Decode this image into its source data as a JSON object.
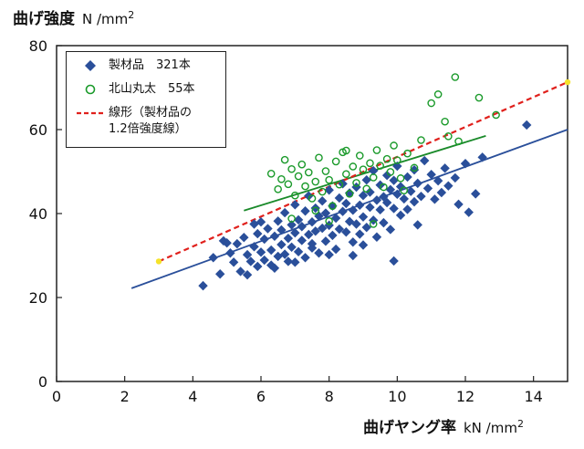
{
  "chart_data": {
    "type": "scatter",
    "ylabel": "曲げ強度",
    "ylabel_unit": "N /mm2",
    "xlabel": "曲げヤング率",
    "xlabel_unit": "kN /mm2",
    "xlim": [
      0,
      15
    ],
    "ylim": [
      0,
      80
    ],
    "x_ticks": [
      "0",
      "2",
      "4",
      "6",
      "8",
      "10",
      "12",
      "14"
    ],
    "y_ticks": [
      "0",
      "20",
      "40",
      "60",
      "80"
    ],
    "grid": false,
    "legend_position": "top-left",
    "series": [
      {
        "name": "製材品",
        "count_label": "321本",
        "marker": "diamond",
        "color": "#2a4f9a",
        "points": [
          [
            4.3,
            22.8
          ],
          [
            4.6,
            29.5
          ],
          [
            4.8,
            25.6
          ],
          [
            4.9,
            33.5
          ],
          [
            5.1,
            30.6
          ],
          [
            5.2,
            28.4
          ],
          [
            5.3,
            32.8
          ],
          [
            5.4,
            26.2
          ],
          [
            5.5,
            34.3
          ],
          [
            5.6,
            25.4
          ],
          [
            5.6,
            30.2
          ],
          [
            5.7,
            28.6
          ],
          [
            5.8,
            32.1
          ],
          [
            5.9,
            35.2
          ],
          [
            5.9,
            27.4
          ],
          [
            6.0,
            30.8
          ],
          [
            6.1,
            33.9
          ],
          [
            6.1,
            28.9
          ],
          [
            6.2,
            36.4
          ],
          [
            6.3,
            31.3
          ],
          [
            6.3,
            27.7
          ],
          [
            6.4,
            34.6
          ],
          [
            6.5,
            38.2
          ],
          [
            6.5,
            29.8
          ],
          [
            6.6,
            32.6
          ],
          [
            6.6,
            36.1
          ],
          [
            6.7,
            30.3
          ],
          [
            6.7,
            40.2
          ],
          [
            6.8,
            34.1
          ],
          [
            6.8,
            28.6
          ],
          [
            6.9,
            37.3
          ],
          [
            6.9,
            32.0
          ],
          [
            7.0,
            35.4
          ],
          [
            7.0,
            42.1
          ],
          [
            7.1,
            30.9
          ],
          [
            7.1,
            38.5
          ],
          [
            7.2,
            33.6
          ],
          [
            7.2,
            36.9
          ],
          [
            7.3,
            40.6
          ],
          [
            7.3,
            29.5
          ],
          [
            7.4,
            35.0
          ],
          [
            7.4,
            44.2
          ],
          [
            7.5,
            32.8
          ],
          [
            7.5,
            38.0
          ],
          [
            7.6,
            41.3
          ],
          [
            7.6,
            35.8
          ],
          [
            7.7,
            30.6
          ],
          [
            7.7,
            39.4
          ],
          [
            7.8,
            36.5
          ],
          [
            7.8,
            43.0
          ],
          [
            7.9,
            33.4
          ],
          [
            7.9,
            40.1
          ],
          [
            8.0,
            37.2
          ],
          [
            8.0,
            45.6
          ],
          [
            8.1,
            34.8
          ],
          [
            8.1,
            41.8
          ],
          [
            8.2,
            38.9
          ],
          [
            8.2,
            31.5
          ],
          [
            8.3,
            43.7
          ],
          [
            8.3,
            36.3
          ],
          [
            8.4,
            40.5
          ],
          [
            8.4,
            47.1
          ],
          [
            8.5,
            35.6
          ],
          [
            8.5,
            42.4
          ],
          [
            8.6,
            38.1
          ],
          [
            8.6,
            44.9
          ],
          [
            8.7,
            33.2
          ],
          [
            8.7,
            40.8
          ],
          [
            8.8,
            37.5
          ],
          [
            8.8,
            46.3
          ],
          [
            8.9,
            42.0
          ],
          [
            8.9,
            35.1
          ],
          [
            9.0,
            44.3
          ],
          [
            9.0,
            39.2
          ],
          [
            9.1,
            48.0
          ],
          [
            9.1,
            36.7
          ],
          [
            9.2,
            41.5
          ],
          [
            9.2,
            45.1
          ],
          [
            9.3,
            38.4
          ],
          [
            9.3,
            50.2
          ],
          [
            9.4,
            43.2
          ],
          [
            9.4,
            34.4
          ],
          [
            9.5,
            46.8
          ],
          [
            9.5,
            40.9
          ],
          [
            9.6,
            44.0
          ],
          [
            9.6,
            37.8
          ],
          [
            9.7,
            49.1
          ],
          [
            9.7,
            42.6
          ],
          [
            9.8,
            45.7
          ],
          [
            9.8,
            36.2
          ],
          [
            9.9,
            47.9
          ],
          [
            9.9,
            41.2
          ],
          [
            10.0,
            44.6
          ],
          [
            10.0,
            51.3
          ],
          [
            10.1,
            39.6
          ],
          [
            10.1,
            46.4
          ],
          [
            10.2,
            43.5
          ],
          [
            10.3,
            48.7
          ],
          [
            10.3,
            41.0
          ],
          [
            10.4,
            45.3
          ],
          [
            10.5,
            50.4
          ],
          [
            10.5,
            42.8
          ],
          [
            10.6,
            47.2
          ],
          [
            10.7,
            44.1
          ],
          [
            10.8,
            52.6
          ],
          [
            10.9,
            46.0
          ],
          [
            11.0,
            49.3
          ],
          [
            11.1,
            43.4
          ],
          [
            11.2,
            47.8
          ],
          [
            11.3,
            45.0
          ],
          [
            11.4,
            50.8
          ],
          [
            11.5,
            46.6
          ],
          [
            11.7,
            48.5
          ],
          [
            11.8,
            42.2
          ],
          [
            12.0,
            51.9
          ],
          [
            12.1,
            40.3
          ],
          [
            12.3,
            44.7
          ],
          [
            12.5,
            53.4
          ],
          [
            13.8,
            61.1
          ],
          [
            9.9,
            28.7
          ],
          [
            5.0,
            33.0
          ],
          [
            6.4,
            27.0
          ],
          [
            7.0,
            28.4
          ],
          [
            8.0,
            30.2
          ],
          [
            6.0,
            38.0
          ],
          [
            5.8,
            37.5
          ],
          [
            9.0,
            32.5
          ],
          [
            7.5,
            31.8
          ],
          [
            8.7,
            30.0
          ],
          [
            10.6,
            37.3
          ]
        ]
      },
      {
        "name": "北山丸太",
        "count_label": "55本",
        "marker": "circle-open",
        "color": "#1a9a2a",
        "points": [
          [
            6.3,
            49.5
          ],
          [
            6.5,
            45.8
          ],
          [
            6.6,
            48.2
          ],
          [
            6.7,
            52.8
          ],
          [
            6.8,
            47.0
          ],
          [
            6.9,
            50.6
          ],
          [
            7.0,
            44.3
          ],
          [
            7.1,
            48.9
          ],
          [
            7.2,
            51.7
          ],
          [
            7.3,
            46.5
          ],
          [
            7.4,
            49.8
          ],
          [
            7.5,
            43.6
          ],
          [
            7.6,
            47.6
          ],
          [
            7.7,
            53.3
          ],
          [
            7.8,
            45.2
          ],
          [
            7.9,
            50.1
          ],
          [
            8.0,
            48.0
          ],
          [
            8.1,
            41.8
          ],
          [
            8.2,
            52.4
          ],
          [
            8.3,
            46.9
          ],
          [
            8.4,
            54.6
          ],
          [
            8.5,
            49.4
          ],
          [
            8.6,
            44.7
          ],
          [
            8.7,
            51.2
          ],
          [
            8.8,
            47.3
          ],
          [
            8.9,
            53.8
          ],
          [
            9.0,
            50.5
          ],
          [
            9.1,
            45.9
          ],
          [
            9.2,
            52.0
          ],
          [
            9.3,
            48.6
          ],
          [
            9.4,
            55.1
          ],
          [
            9.5,
            51.4
          ],
          [
            9.6,
            46.3
          ],
          [
            9.7,
            53.0
          ],
          [
            9.8,
            49.9
          ],
          [
            9.9,
            56.2
          ],
          [
            10.0,
            52.7
          ],
          [
            10.1,
            48.4
          ],
          [
            10.3,
            54.3
          ],
          [
            10.5,
            50.9
          ],
          [
            10.7,
            57.5
          ],
          [
            11.0,
            66.3
          ],
          [
            11.2,
            68.4
          ],
          [
            11.4,
            61.9
          ],
          [
            11.7,
            72.5
          ],
          [
            11.5,
            58.4
          ],
          [
            11.8,
            57.2
          ],
          [
            12.4,
            67.6
          ],
          [
            12.9,
            63.5
          ],
          [
            6.9,
            38.8
          ],
          [
            7.6,
            40.7
          ],
          [
            8.0,
            38.2
          ],
          [
            9.3,
            37.5
          ],
          [
            8.5,
            55.0
          ],
          [
            10.2,
            45.5
          ]
        ]
      }
    ],
    "lines": [
      {
        "name": "製材品 回帰線",
        "color": "#2a4f9a",
        "x": [
          2.2,
          15.0
        ],
        "y": [
          22.2,
          60.0
        ]
      },
      {
        "name": "北山丸太 回帰線",
        "color": "#1a8a2a",
        "x": [
          5.5,
          12.6
        ],
        "y": [
          40.7,
          58.5
        ]
      },
      {
        "name": "線形（製材品の1.2倍強度線）",
        "color": "#e0201c",
        "dash": true,
        "x": [
          3.0,
          15.0
        ],
        "y": [
          28.6,
          71.3
        ]
      }
    ],
    "endpoint_markers": [
      {
        "color": "#f5e22a",
        "x": 3.0,
        "y": 28.6
      },
      {
        "color": "#f5e22a",
        "x": 15.0,
        "y": 71.3
      }
    ],
    "legend": {
      "entries": [
        {
          "text": "製材品　321本",
          "marker": "diamond",
          "color": "#2a4f9a"
        },
        {
          "text": "北山丸太　55本",
          "marker": "circle-open",
          "color": "#1a9a2a"
        },
        {
          "text_line1": "線形（製材品の",
          "text_line2": "1.2倍強度線）",
          "marker": "dashed-line",
          "color": "#e0201c"
        }
      ]
    }
  }
}
